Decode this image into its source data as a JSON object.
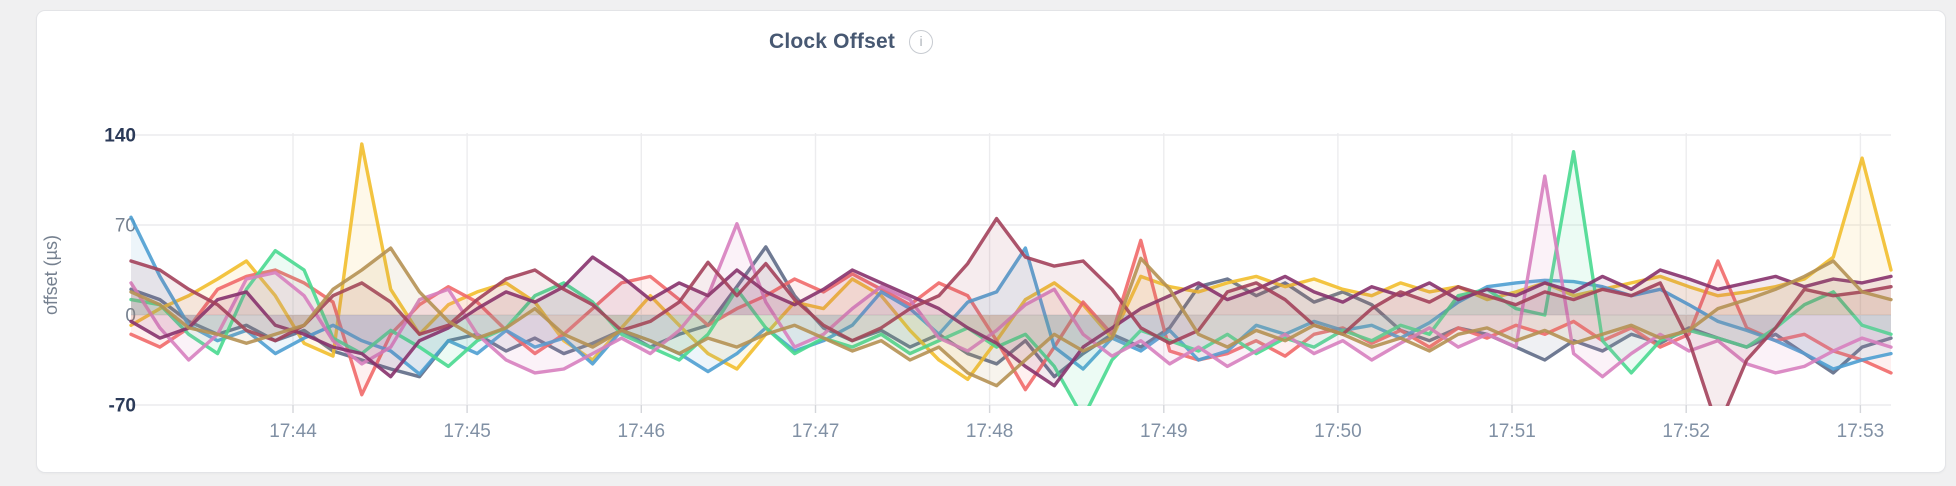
{
  "header": {
    "title": "Clock Offset",
    "info_icon_glyph": "i"
  },
  "colors": {
    "page_background": "#f0f0f1",
    "card_background": "#ffffff",
    "card_border": "#e3e4e7",
    "title_text": "#475872",
    "info_icon_border": "#c7cbd1",
    "axis_maxmin_text": "#2b3a58",
    "axis_mid_text": "#75808f",
    "x_tick_text": "#8090a4",
    "grid_line": "#ececee",
    "tick_stub": "#d4d6da"
  },
  "chart_data": {
    "type": "line",
    "title": "Clock Offset",
    "xlabel": "",
    "ylabel": "offset (µs)",
    "ylim": [
      -70,
      140
    ],
    "y_ticks": [
      140,
      70,
      0,
      -70
    ],
    "grid": true,
    "legend_position": "none",
    "x_start": "17:43:00",
    "x_end": "17:53:10",
    "x_step_seconds": 10,
    "x_ticks": [
      {
        "label": "17:44",
        "index": 6
      },
      {
        "label": "17:45",
        "index": 12
      },
      {
        "label": "17:46",
        "index": 18
      },
      {
        "label": "17:47",
        "index": 24
      },
      {
        "label": "17:48",
        "index": 30
      },
      {
        "label": "17:49",
        "index": 36
      },
      {
        "label": "17:50",
        "index": 42
      },
      {
        "label": "17:51",
        "index": 48
      },
      {
        "label": "17:52",
        "index": 54
      },
      {
        "label": "17:53",
        "index": 60
      }
    ],
    "fill_opacity": 0.1,
    "line_width": 3.4,
    "series": [
      {
        "name": "series-1",
        "color": "#5F6C87",
        "values": [
          20,
          12,
          -5,
          -15,
          -8,
          -20,
          -12,
          -28,
          -35,
          -42,
          -48,
          -20,
          -15,
          -28,
          -18,
          -30,
          -22,
          -12,
          -25,
          -15,
          -8,
          22,
          53,
          15,
          -10,
          -20,
          -12,
          -25,
          -15,
          -30,
          -38,
          -20,
          -48,
          -30,
          -15,
          -25,
          -10,
          22,
          28,
          15,
          25,
          10,
          18,
          8,
          -12,
          -20,
          -10,
          -15,
          -25,
          -35,
          -20,
          -28,
          -15,
          -22,
          -10,
          -18,
          -25,
          -15,
          -30,
          -45,
          -25,
          -18
        ]
      },
      {
        "name": "series-2",
        "color": "#F2BE2C",
        "values": [
          -8,
          5,
          15,
          28,
          42,
          15,
          -22,
          -32,
          133,
          20,
          -15,
          8,
          18,
          25,
          10,
          -20,
          -35,
          -10,
          15,
          -8,
          -30,
          -42,
          -15,
          10,
          5,
          28,
          15,
          -12,
          -35,
          -50,
          -20,
          12,
          25,
          8,
          -18,
          30,
          22,
          18,
          25,
          30,
          22,
          28,
          20,
          15,
          25,
          18,
          22,
          12,
          18,
          25,
          15,
          20,
          25,
          30,
          22,
          15,
          18,
          22,
          28,
          45,
          122,
          35
        ]
      },
      {
        "name": "series-3",
        "color": "#F16969",
        "values": [
          -15,
          -25,
          -10,
          20,
          30,
          35,
          25,
          10,
          -62,
          -15,
          8,
          22,
          10,
          -12,
          -30,
          -15,
          5,
          25,
          30,
          12,
          -8,
          5,
          15,
          28,
          18,
          32,
          20,
          8,
          25,
          15,
          -20,
          -58,
          -25,
          10,
          -15,
          58,
          -28,
          -35,
          -30,
          -20,
          -32,
          -15,
          -10,
          -22,
          -12,
          -25,
          -10,
          -18,
          -8,
          -15,
          -5,
          -20,
          -10,
          -25,
          -15,
          42,
          -10,
          -20,
          -15,
          -28,
          -35,
          -45
        ]
      },
      {
        "name": "series-4",
        "color": "#4E9FD1",
        "values": [
          76,
          30,
          -8,
          -20,
          -12,
          -30,
          -18,
          -8,
          -20,
          -28,
          -46,
          -20,
          -30,
          -12,
          -25,
          -18,
          -38,
          -12,
          -20,
          -30,
          -44,
          -30,
          -10,
          -28,
          -20,
          -8,
          18,
          5,
          -15,
          10,
          18,
          52,
          -25,
          -42,
          -18,
          -28,
          -12,
          -35,
          -28,
          -8,
          -15,
          -5,
          -12,
          -8,
          -18,
          -6,
          10,
          22,
          25,
          27,
          26,
          22,
          15,
          20,
          8,
          -5,
          -12,
          -20,
          -30,
          -42,
          -35,
          -30
        ]
      },
      {
        "name": "series-5",
        "color": "#49D990",
        "values": [
          12,
          8,
          -15,
          -30,
          20,
          50,
          35,
          -18,
          -30,
          -12,
          -25,
          -40,
          -20,
          -10,
          15,
          25,
          10,
          -15,
          -25,
          -35,
          -15,
          20,
          -10,
          -30,
          -18,
          -25,
          -15,
          -30,
          -20,
          -10,
          -25,
          -15,
          -40,
          -80,
          -35,
          -12,
          -20,
          -28,
          -15,
          -30,
          -18,
          -25,
          -12,
          -20,
          -8,
          -15,
          15,
          20,
          5,
          0,
          127,
          -20,
          -45,
          -20,
          -12,
          -18,
          -25,
          -10,
          8,
          18,
          -8,
          -15
        ]
      },
      {
        "name": "series-6",
        "color": "#D77FBF",
        "values": [
          25,
          -10,
          -35,
          -15,
          28,
          33,
          15,
          -20,
          -38,
          -25,
          12,
          20,
          -15,
          -35,
          -45,
          -42,
          -30,
          -18,
          -30,
          -12,
          15,
          71,
          10,
          -25,
          -15,
          5,
          22,
          12,
          -18,
          -28,
          -12,
          8,
          20,
          -15,
          -32,
          -20,
          -38,
          -25,
          -40,
          -28,
          -15,
          -30,
          -20,
          -35,
          -22,
          -10,
          -25,
          -15,
          -25,
          108,
          -30,
          -48,
          -30,
          -15,
          -28,
          -20,
          -38,
          -45,
          -40,
          -28,
          -18,
          -25
        ]
      },
      {
        "name": "series-7",
        "color": "#87326D",
        "values": [
          -5,
          -18,
          -10,
          12,
          18,
          -8,
          -15,
          -25,
          -30,
          -48,
          -20,
          -10,
          5,
          18,
          10,
          22,
          45,
          30,
          12,
          25,
          15,
          35,
          18,
          8,
          20,
          35,
          25,
          15,
          5,
          -10,
          -22,
          -40,
          -55,
          -25,
          -10,
          5,
          15,
          25,
          12,
          20,
          30,
          18,
          10,
          22,
          15,
          25,
          12,
          20,
          15,
          25,
          18,
          30,
          20,
          35,
          28,
          20,
          25,
          30,
          22,
          28,
          25,
          30
        ]
      },
      {
        "name": "series-8",
        "color": "#A3415B",
        "values": [
          42,
          35,
          20,
          8,
          -12,
          -20,
          -8,
          15,
          25,
          10,
          -15,
          -8,
          12,
          28,
          35,
          20,
          8,
          -12,
          -5,
          10,
          41,
          15,
          40,
          12,
          -8,
          -20,
          -10,
          5,
          15,
          40,
          75,
          45,
          38,
          42,
          20,
          -10,
          -22,
          -12,
          18,
          25,
          12,
          -8,
          -15,
          5,
          18,
          10,
          22,
          15,
          8,
          18,
          12,
          20,
          15,
          25,
          -20,
          -88,
          -35,
          -10,
          20,
          15,
          18,
          22
        ]
      },
      {
        "name": "series-9",
        "color": "#B59153",
        "values": [
          18,
          8,
          -10,
          -15,
          -22,
          -15,
          -8,
          20,
          35,
          52,
          18,
          -5,
          -18,
          -10,
          5,
          -15,
          -25,
          -12,
          -20,
          -30,
          -18,
          -25,
          -15,
          -8,
          -18,
          -28,
          -20,
          -35,
          -25,
          -45,
          -55,
          -35,
          -15,
          -28,
          -18,
          44,
          20,
          -15,
          -25,
          -12,
          -20,
          -8,
          -15,
          -25,
          -18,
          -28,
          -15,
          -10,
          -20,
          -12,
          -22,
          -15,
          -8,
          -18,
          -12,
          5,
          12,
          20,
          30,
          42,
          18,
          12
        ]
      }
    ]
  }
}
